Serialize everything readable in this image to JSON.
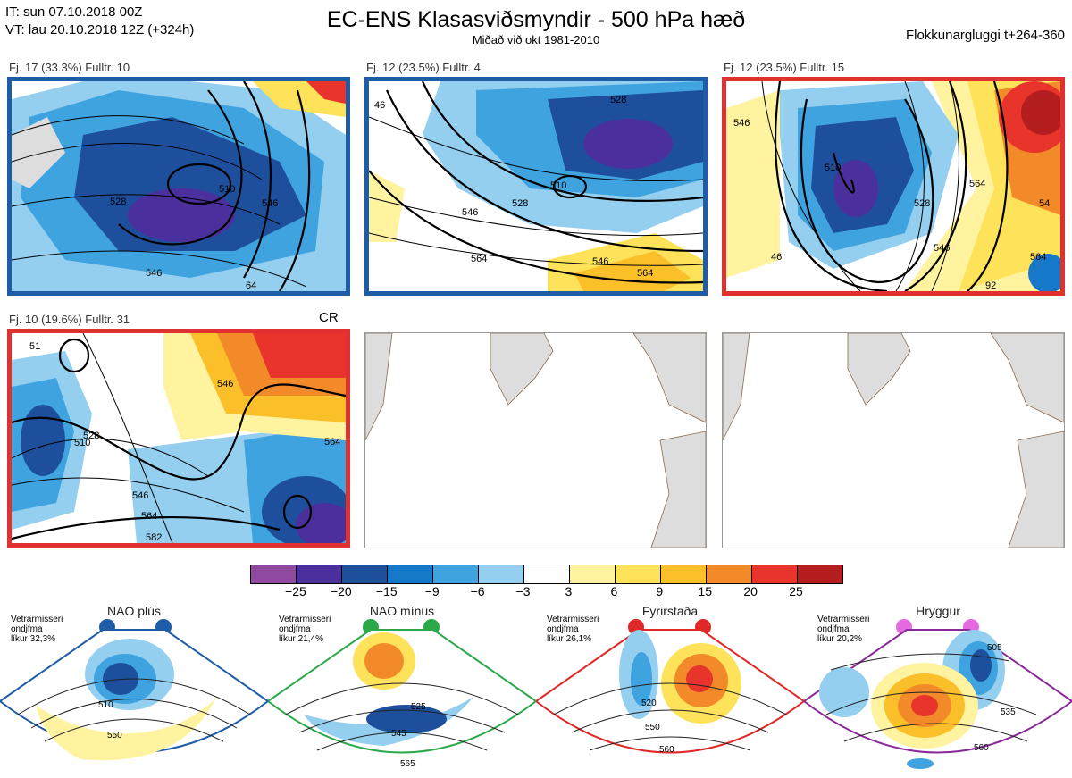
{
  "header": {
    "it_line": "IT: sun 07.10.2018 00Z",
    "vt_line": "VT: lau 20.10.2018 12Z  (+324h)",
    "title": "EC-ENS Klasasviðsmyndir - 500 hPa hæð",
    "subtitle": "Miðað við okt 1981-2010",
    "window": "Flokkunargluggi t+264-360"
  },
  "panels": [
    {
      "label": "Fj. 17 (33.3%)   Fulltr. 10",
      "border": "#1f5ca8",
      "contours": [
        "510",
        "528",
        "546",
        "546",
        "64"
      ]
    },
    {
      "label": "Fj. 12 (23.5%)   Fulltr. 4",
      "border": "#1f5ca8",
      "contours": [
        "510",
        "528",
        "528",
        "546",
        "546",
        "564",
        "564",
        "46"
      ]
    },
    {
      "label": "Fj. 12 (23.5%)   Fulltr. 15",
      "border": "#e03030",
      "contours": [
        "510",
        "528",
        "546",
        "546",
        "564",
        "564",
        "46",
        "54",
        "92"
      ]
    },
    {
      "label": "Fj. 10 (19.6%)   Fulltr. 31",
      "border": "#e03030",
      "extra": "CR",
      "contours": [
        "510",
        "528",
        "546",
        "546",
        "564",
        "564",
        "582",
        "51"
      ]
    }
  ],
  "colorbar": {
    "colors": [
      "#8f4aa0",
      "#4b2f9c",
      "#1e4f9c",
      "#1678c8",
      "#3fa3e0",
      "#94cff0",
      "#ffffff",
      "#fff3a0",
      "#fde25a",
      "#fbbf2a",
      "#f28a2a",
      "#e8342a",
      "#b41e1e"
    ],
    "ticks": [
      "−25",
      "−20",
      "−15",
      "−9",
      "−6",
      "−3",
      "3",
      "6",
      "9",
      "15",
      "20",
      "25"
    ]
  },
  "regimes": [
    {
      "name": "NAO plús",
      "color": "#1f5ca8",
      "note": [
        "Vetrarmisseri",
        "ondjfma",
        "líkur 32,3%"
      ],
      "contours": [
        "510",
        "550"
      ]
    },
    {
      "name": "NAO mínus",
      "color": "#2aa84a",
      "note": [
        "Vetrarmisseri",
        "ondjfma",
        "líkur 21,4%"
      ],
      "contours": [
        "525",
        "545",
        "565"
      ]
    },
    {
      "name": "Fyrirstaða",
      "color": "#e02828",
      "note": [
        "Vetrarmisseri",
        "ondjfma",
        "líkur 26,1%"
      ],
      "contours": [
        "520",
        "550",
        "560"
      ]
    },
    {
      "name": "Hryggur",
      "color": "#e46ae0",
      "note": [
        "Vetrarmisseri",
        "ondjfma",
        "líkur 20,2%"
      ],
      "contours": [
        "505",
        "535",
        "560"
      ]
    }
  ]
}
